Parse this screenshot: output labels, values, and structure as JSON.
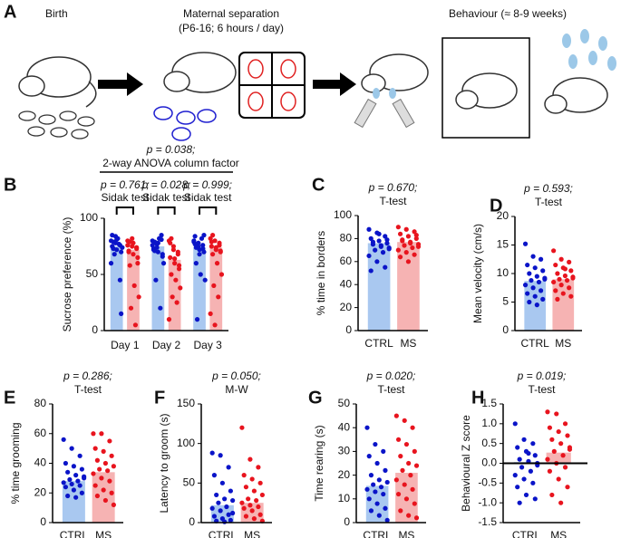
{
  "panel_a": {
    "label": "A",
    "birth": "Birth",
    "separation": [
      "Maternal separation",
      "(P6-16; 6 hours  / day)"
    ],
    "behaviour": "Behaviour (≈ 8-9 weeks)"
  },
  "chart_data": [
    {
      "panel": "B",
      "type": "grouped_bar",
      "ylabel": "Sucrose preference (%)",
      "annotation": [
        "p = 0.038;",
        "2-way ANOVA column factor"
      ],
      "group_annotations": [
        [
          "p = 0.761;",
          "Sidak test"
        ],
        [
          "p = 0.028;",
          "Sidak test"
        ],
        [
          "p = 0.999;",
          "Sidak test"
        ]
      ],
      "categories": [
        "Day 1",
        "Day 2",
        "Day 3"
      ],
      "ylim": [
        0,
        100
      ],
      "yticks": [
        0,
        50,
        100
      ],
      "series": [
        {
          "color": "#a9c8f0",
          "point_color": "#0a14c8",
          "values": [
            75,
            75,
            74
          ],
          "points": [
            [
              80,
              78,
              76,
              85,
              72,
              70,
              79,
              82,
              74,
              68,
              77,
              60,
              84,
              45,
              75,
              81,
              15,
              73
            ],
            [
              80,
              77,
              85,
              72,
              70,
              68,
              79,
              82,
              60,
              45,
              20,
              76,
              74,
              81,
              73,
              78,
              66,
              71
            ],
            [
              80,
              78,
              76,
              84,
              72,
              70,
              60,
              50,
              45,
              10,
              82,
              79,
              75,
              73,
              77,
              68,
              85,
              74
            ]
          ]
        },
        {
          "color": "#f6b3b3",
          "point_color": "#e8141e",
          "values": [
            72,
            63,
            74
          ],
          "points": [
            [
              80,
              75,
              73,
              70,
              78,
              65,
              58,
              40,
              30,
              20,
              5,
              76,
              82,
              74,
              71,
              68,
              60,
              79
            ],
            [
              80,
              75,
              70,
              65,
              60,
              55,
              50,
              45,
              38,
              30,
              25,
              10,
              72,
              68,
              78,
              64,
              58,
              82
            ],
            [
              82,
              80,
              78,
              75,
              72,
              70,
              68,
              60,
              50,
              40,
              30,
              15,
              5,
              76,
              79,
              74,
              71,
              85
            ]
          ]
        }
      ]
    },
    {
      "panel": "C",
      "type": "bar",
      "ylabel": "% time in borders",
      "annotation": [
        "p = 0.670;",
        "T-test"
      ],
      "categories": [
        "CTRL",
        "MS"
      ],
      "values": [
        76,
        77
      ],
      "colors": [
        "#a9c8f0",
        "#f6b3b3"
      ],
      "point_colors": [
        "#0a14c8",
        "#e8141e"
      ],
      "ylim": [
        0,
        100
      ],
      "yticks": [
        0,
        20,
        40,
        60,
        80,
        100
      ],
      "points": [
        [
          88,
          85,
          82,
          80,
          78,
          76,
          75,
          74,
          72,
          70,
          68,
          65,
          60,
          55,
          52,
          84,
          79,
          77,
          73,
          71
        ],
        [
          90,
          88,
          86,
          84,
          82,
          80,
          78,
          76,
          75,
          74,
          72,
          70,
          68,
          66,
          64,
          60,
          83,
          79,
          77,
          73
        ]
      ]
    },
    {
      "panel": "D",
      "type": "bar",
      "ylabel": "Mean velocity (cm/s)",
      "annotation": [
        "p = 0.593;",
        "T-test"
      ],
      "categories": [
        "CTRL",
        "MS"
      ],
      "values": [
        8.7,
        9
      ],
      "colors": [
        "#a9c8f0",
        "#f6b3b3"
      ],
      "point_colors": [
        "#0a14c8",
        "#e8141e"
      ],
      "ylim": [
        0,
        20
      ],
      "yticks": [
        0,
        5,
        10,
        15,
        20
      ],
      "points": [
        [
          15.2,
          13,
          12.5,
          11.5,
          11,
          10.5,
          10,
          9.5,
          9,
          8.8,
          8.5,
          8,
          7.5,
          7,
          6.5,
          6,
          5.5,
          5,
          4.5,
          9.2
        ],
        [
          14,
          12.5,
          12,
          11.5,
          11,
          10.5,
          10,
          9.6,
          9.2,
          9,
          8.8,
          8.5,
          8,
          7.5,
          7,
          6.5,
          6,
          5.5,
          10.8,
          9.4
        ]
      ]
    },
    {
      "panel": "E",
      "type": "bar",
      "ylabel": "% time grooming",
      "annotation": [
        "p = 0.286;",
        "T-test"
      ],
      "categories": [
        "CTRL",
        "MS"
      ],
      "values": [
        28,
        34
      ],
      "colors": [
        "#a9c8f0",
        "#f6b3b3"
      ],
      "point_colors": [
        "#0a14c8",
        "#e8141e"
      ],
      "ylim": [
        0,
        80
      ],
      "yticks": [
        0,
        20,
        40,
        60,
        80
      ],
      "points": [
        [
          56,
          50,
          45,
          40,
          38,
          36,
          34,
          32,
          30,
          29,
          28,
          27,
          26,
          25,
          24,
          22,
          20,
          18,
          17,
          31
        ],
        [
          60,
          60,
          55,
          50,
          48,
          45,
          42,
          40,
          38,
          36,
          35,
          33,
          30,
          28,
          25,
          22,
          20,
          18,
          15,
          12
        ]
      ]
    },
    {
      "panel": "F",
      "type": "bar",
      "ylabel": "Latency to groom (s)",
      "annotation": [
        "p = 0.050;",
        "M-W"
      ],
      "categories": [
        "CTRL",
        "MS"
      ],
      "values": [
        22,
        25
      ],
      "colors": [
        "#a9c8f0",
        "#f6b3b3"
      ],
      "point_colors": [
        "#0a14c8",
        "#e8141e"
      ],
      "ylim": [
        0,
        150
      ],
      "yticks": [
        0,
        50,
        100,
        150
      ],
      "points": [
        [
          88,
          85,
          70,
          60,
          50,
          40,
          35,
          30,
          28,
          25,
          20,
          18,
          15,
          10,
          8,
          5,
          3,
          2,
          1,
          12
        ],
        [
          120,
          80,
          70,
          60,
          55,
          50,
          45,
          40,
          35,
          30,
          28,
          25,
          22,
          20,
          18,
          15,
          10,
          8,
          5,
          2
        ]
      ]
    },
    {
      "panel": "G",
      "type": "bar",
      "ylabel": "Time rearing (s)",
      "annotation": [
        "p = 0.020;",
        "T-test"
      ],
      "categories": [
        "CTRL",
        "MS"
      ],
      "values": [
        15.5,
        21
      ],
      "colors": [
        "#a9c8f0",
        "#f6b3b3"
      ],
      "point_colors": [
        "#0a14c8",
        "#e8141e"
      ],
      "ylim": [
        0,
        50
      ],
      "yticks": [
        0,
        10,
        20,
        30,
        40,
        50
      ],
      "points": [
        [
          40,
          33,
          30,
          28,
          25,
          22,
          20,
          18,
          17,
          16,
          15,
          14,
          13,
          12,
          10,
          8,
          6,
          5,
          3,
          1
        ],
        [
          45,
          43,
          40,
          35,
          33,
          30,
          28,
          25,
          24,
          22,
          20,
          18,
          16,
          14,
          12,
          10,
          8,
          5,
          3,
          2
        ]
      ]
    },
    {
      "panel": "H",
      "type": "bar",
      "ylabel": "Behavioural Z score",
      "annotation": [
        "p = 0.019;",
        "T-test"
      ],
      "categories": [
        "CTRL",
        "MS"
      ],
      "values": [
        0.03,
        0.27
      ],
      "colors": [
        "#a9c8f0",
        "#f6b3b3"
      ],
      "point_colors": [
        "#0a14c8",
        "#e8141e"
      ],
      "ylim": [
        -1.5,
        1.5
      ],
      "zero_line": true,
      "yticks": [
        -1.5,
        {
          "value": -1,
          "label": "-1.0"
        },
        -0.5,
        {
          "value": 0,
          "label": "0.0"
        },
        0.5,
        {
          "value": 1,
          "label": "1.0"
        },
        1.5
      ],
      "points": [
        [
          1.0,
          0.6,
          0.5,
          0.4,
          0.3,
          0.2,
          0.1,
          0.05,
          0,
          -0.1,
          -0.2,
          -0.3,
          -0.4,
          -0.5,
          -0.6,
          -0.8,
          -0.9,
          -1.0,
          0.25,
          -0.05
        ],
        [
          1.3,
          1.25,
          1.0,
          0.9,
          0.8,
          0.7,
          0.6,
          0.5,
          0.4,
          0.3,
          0.2,
          0.1,
          0,
          -0.1,
          -0.2,
          -0.4,
          -0.6,
          -0.8,
          -1.0,
          0.35
        ]
      ]
    }
  ]
}
